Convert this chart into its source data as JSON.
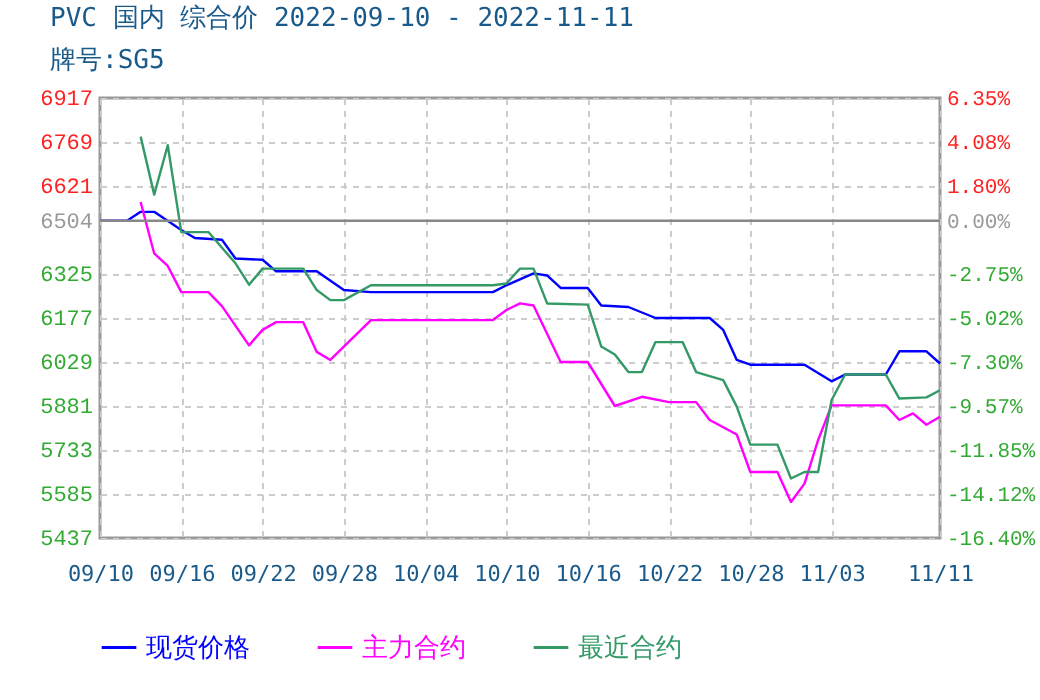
{
  "chart_data": {
    "type": "line",
    "title": "PVC 国内 综合价 2022-09-10 - 2022-11-11",
    "subtitle": "牌号:SG5",
    "xlim": [
      "2022-09-10",
      "2022-11-11"
    ],
    "xticks": [
      {
        "value": "2022-09-10",
        "label": "09/10"
      },
      {
        "value": "2022-09-16",
        "label": "09/16"
      },
      {
        "value": "2022-09-22",
        "label": "09/22"
      },
      {
        "value": "2022-09-28",
        "label": "09/28"
      },
      {
        "value": "2022-10-04",
        "label": "10/04"
      },
      {
        "value": "2022-10-10",
        "label": "10/10"
      },
      {
        "value": "2022-10-16",
        "label": "10/16"
      },
      {
        "value": "2022-10-22",
        "label": "10/22"
      },
      {
        "value": "2022-10-28",
        "label": "10/28"
      },
      {
        "value": "2022-11-03",
        "label": "11/03"
      },
      {
        "value": "2022-11-11",
        "label": "11/11"
      }
    ],
    "ylim": [
      5437,
      6917
    ],
    "yticks": [
      5437,
      5585,
      5733,
      5881,
      6029,
      6177,
      6325,
      6504,
      6621,
      6769,
      6917
    ],
    "y2lim": [
      -16.4,
      6.35
    ],
    "y2ticks": [
      {
        "value": -16.4,
        "label": "-16.40%"
      },
      {
        "value": -14.12,
        "label": "-14.12%"
      },
      {
        "value": -11.85,
        "label": "-11.85%"
      },
      {
        "value": -9.57,
        "label": "-9.57%"
      },
      {
        "value": -7.3,
        "label": "-7.30%"
      },
      {
        "value": -5.02,
        "label": "-5.02%"
      },
      {
        "value": -2.75,
        "label": "-2.75%"
      },
      {
        "value": 0,
        "label": "0.00%"
      },
      {
        "value": 1.8,
        "label": "1.80%"
      },
      {
        "value": 4.08,
        "label": "4.08%"
      },
      {
        "value": 6.35,
        "label": "6.35%"
      }
    ],
    "ref_lines": [
      {
        "axis": "y",
        "value": 6504,
        "color": "#888888"
      }
    ],
    "grid": true,
    "legend": "bottom",
    "series": [
      {
        "name": "现货价格",
        "color": "#0000ff",
        "x": [
          "2022-09-10",
          "2022-09-12",
          "2022-09-13",
          "2022-09-14",
          "2022-09-16",
          "2022-09-17",
          "2022-09-19",
          "2022-09-20",
          "2022-09-22",
          "2022-09-23",
          "2022-09-26",
          "2022-09-28",
          "2022-09-30",
          "2022-10-09",
          "2022-10-10",
          "2022-10-12",
          "2022-10-13",
          "2022-10-14",
          "2022-10-16",
          "2022-10-17",
          "2022-10-19",
          "2022-10-21",
          "2022-10-25",
          "2022-10-26",
          "2022-10-27",
          "2022-10-28",
          "2022-11-01",
          "2022-11-03",
          "2022-11-04",
          "2022-11-07",
          "2022-11-08",
          "2022-11-10",
          "2022-11-11"
        ],
        "values": [
          6504,
          6504,
          6534,
          6534,
          6473,
          6446,
          6440,
          6377,
          6373,
          6334,
          6334,
          6271,
          6264,
          6264,
          6287,
          6327,
          6320,
          6278,
          6278,
          6219,
          6214,
          6177,
          6177,
          6137,
          6036,
          6020,
          6020,
          5964,
          5987,
          5987,
          6065,
          6065,
          6024
        ]
      },
      {
        "name": "主力合约",
        "color": "#ff00ff",
        "x": [
          "2022-09-13",
          "2022-09-14",
          "2022-09-15",
          "2022-09-16",
          "2022-09-18",
          "2022-09-19",
          "2022-09-21",
          "2022-09-22",
          "2022-09-23",
          "2022-09-25",
          "2022-09-26",
          "2022-09-27",
          "2022-09-30",
          "2022-10-09",
          "2022-10-10",
          "2022-10-11",
          "2022-10-12",
          "2022-10-14",
          "2022-10-16",
          "2022-10-18",
          "2022-10-20",
          "2022-10-22",
          "2022-10-24",
          "2022-10-25",
          "2022-10-27",
          "2022-10-28",
          "2022-10-30",
          "2022-10-31",
          "2022-11-01",
          "2022-11-02",
          "2022-11-03",
          "2022-11-07",
          "2022-11-08",
          "2022-11-09",
          "2022-11-10",
          "2022-11-11"
        ],
        "values": [
          6567,
          6394,
          6352,
          6264,
          6264,
          6217,
          6085,
          6137,
          6163,
          6163,
          6063,
          6036,
          6170,
          6170,
          6204,
          6226,
          6219,
          6029,
          6029,
          5881,
          5912,
          5894,
          5894,
          5834,
          5785,
          5659,
          5659,
          5558,
          5620,
          5766,
          5883,
          5883,
          5834,
          5856,
          5818,
          5845
        ]
      },
      {
        "name": "最近合约",
        "color": "#339966",
        "x": [
          "2022-09-13",
          "2022-09-14",
          "2022-09-15",
          "2022-09-16",
          "2022-09-18",
          "2022-09-20",
          "2022-09-21",
          "2022-09-22",
          "2022-09-25",
          "2022-09-26",
          "2022-09-27",
          "2022-09-28",
          "2022-09-30",
          "2022-10-09",
          "2022-10-10",
          "2022-10-11",
          "2022-10-12",
          "2022-10-13",
          "2022-10-16",
          "2022-10-17",
          "2022-10-18",
          "2022-10-19",
          "2022-10-20",
          "2022-10-21",
          "2022-10-23",
          "2022-10-24",
          "2022-10-26",
          "2022-10-27",
          "2022-10-28",
          "2022-10-30",
          "2022-10-31",
          "2022-11-01",
          "2022-11-02",
          "2022-11-03",
          "2022-11-04",
          "2022-11-07",
          "2022-11-08",
          "2022-11-10",
          "2022-11-11"
        ],
        "values": [
          6787,
          6592,
          6758,
          6466,
          6466,
          6361,
          6289,
          6343,
          6343,
          6271,
          6237,
          6237,
          6287,
          6287,
          6293,
          6343,
          6343,
          6226,
          6222,
          6081,
          6054,
          5995,
          5995,
          6096,
          6096,
          5995,
          5968,
          5879,
          5751,
          5751,
          5637,
          5659,
          5659,
          5901,
          5987,
          5987,
          5906,
          5910,
          5934
        ]
      }
    ]
  }
}
